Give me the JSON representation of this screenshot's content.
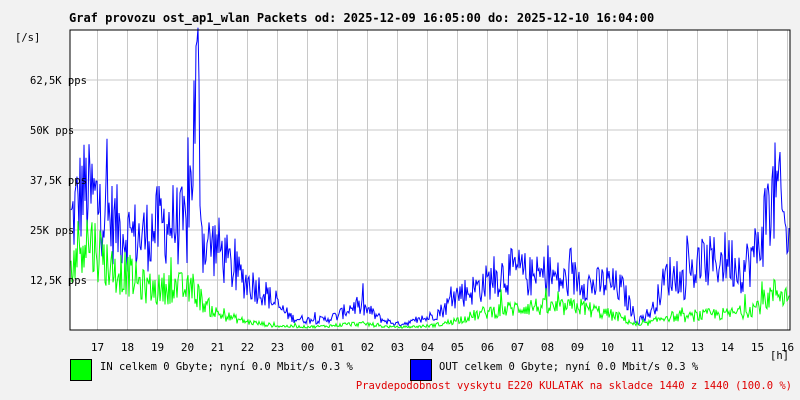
{
  "title": "Graf provozu ost_ap1_wlan Packets od: 2025-12-09 16:05:00 do: 2025-12-10 16:04:00",
  "legend": {
    "in_text": "IN celkem 0 Gbyte; nyní   0.0 Mbit/s 0.3 %",
    "out_text": "OUT celkem 0 Gbyte; nyní   0.0 Mbit/s 0.3 %",
    "in_color": "#00ff00",
    "out_color": "#0000ff"
  },
  "footer": "Pravdepodobnost vyskytu E220 KULATAK na skladce 1440 z 1440 (100.0 %)",
  "chart_data": {
    "type": "line",
    "title": "Graf provozu ost_ap1_wlan Packets od: 2025-12-09 16:05:00 do: 2025-12-10 16:04:00",
    "ylabel": "[/s]",
    "xlabel": "[h]",
    "ylim": [
      0,
      75000
    ],
    "yticks": [
      12500,
      25000,
      37500,
      50000,
      62500
    ],
    "ytick_labels": [
      "12,5K pps",
      "25K pps",
      "37,5K pps",
      "50K pps",
      "62,5K pps"
    ],
    "xtick_labels": [
      "17",
      "18",
      "19",
      "20",
      "21",
      "22",
      "23",
      "00",
      "01",
      "02",
      "03",
      "04",
      "05",
      "06",
      "07",
      "08",
      "09",
      "10",
      "11",
      "12",
      "13",
      "14",
      "15",
      "16"
    ],
    "grid": true,
    "x": [
      "16:05",
      "16:30",
      "17:00",
      "17:30",
      "18:00",
      "18:30",
      "19:00",
      "19:30",
      "20:00",
      "20:20",
      "20:30",
      "21:00",
      "21:30",
      "22:00",
      "22:30",
      "23:00",
      "23:30",
      "00:00",
      "00:30",
      "01:00",
      "01:30",
      "02:00",
      "02:30",
      "03:00",
      "03:30",
      "04:00",
      "04:30",
      "05:00",
      "05:30",
      "06:00",
      "06:30",
      "07:00",
      "07:30",
      "08:00",
      "08:30",
      "09:00",
      "09:30",
      "10:00",
      "10:30",
      "11:00",
      "11:30",
      "12:00",
      "12:30",
      "13:00",
      "13:30",
      "14:00",
      "14:30",
      "15:00",
      "15:20",
      "15:40",
      "16:04"
    ],
    "series": [
      {
        "values": [
          26000,
          35000,
          32000,
          27000,
          24000,
          23000,
          26000,
          27000,
          25000,
          64000,
          22000,
          21000,
          15000,
          12000,
          10000,
          6000,
          3000,
          2500,
          2500,
          3500,
          6000,
          5000,
          2500,
          1500,
          2000,
          3000,
          5000,
          9000,
          10000,
          12000,
          14000,
          15000,
          13000,
          14000,
          12000,
          13000,
          11000,
          12000,
          10000,
          2000,
          5000,
          14000,
          12000,
          16000,
          17000,
          18000,
          15000,
          20000,
          30000,
          35000,
          20000
        ],
        "color": "#0000ff"
      },
      {
        "values": [
          14000,
          24000,
          20000,
          15000,
          14000,
          11000,
          10000,
          11000,
          10000,
          9000,
          7000,
          4000,
          3000,
          2000,
          1500,
          1000,
          900,
          800,
          900,
          1200,
          1500,
          1500,
          900,
          700,
          800,
          1000,
          1500,
          2500,
          3500,
          4500,
          5000,
          5500,
          6000,
          5500,
          5500,
          6000,
          5000,
          4000,
          3000,
          1000,
          2000,
          3500,
          3000,
          3500,
          4000,
          4000,
          4500,
          6000,
          8000,
          10000,
          8000
        ],
        "color": "#00ff00"
      }
    ]
  }
}
